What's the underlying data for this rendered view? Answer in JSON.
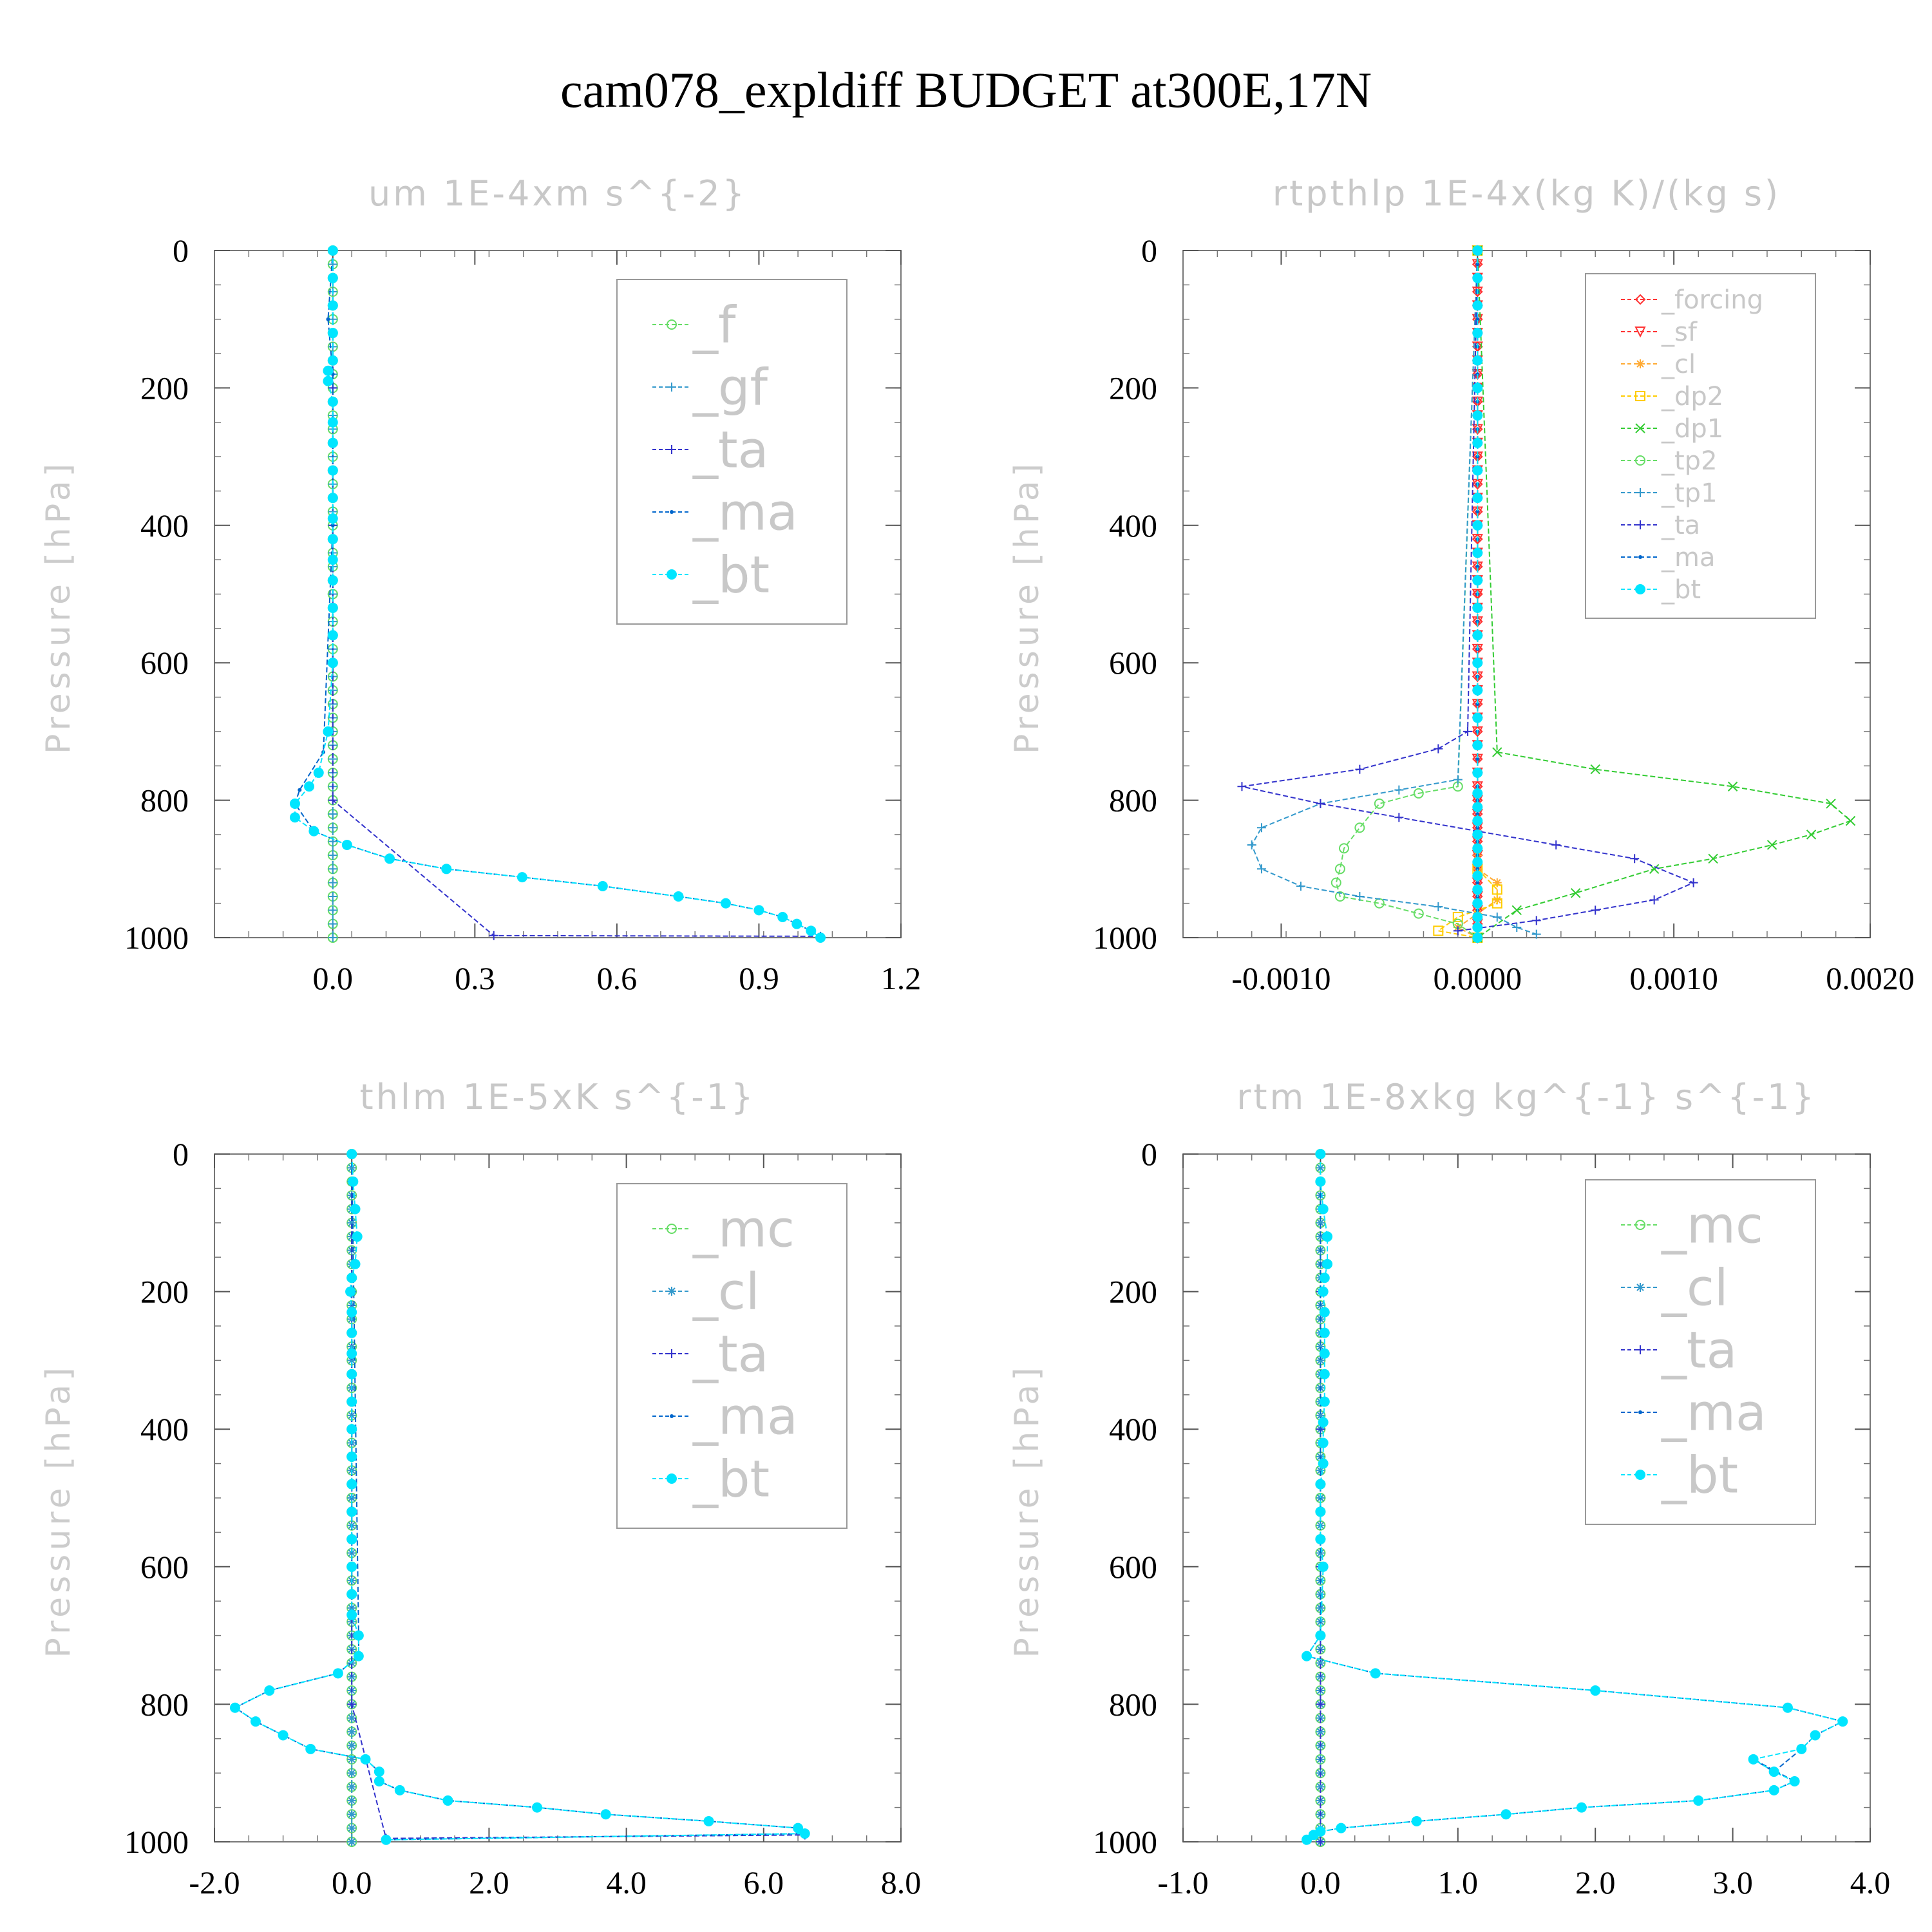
{
  "title": "cam078_expldiff  BUDGET at300E,17N",
  "chart_data": [
    {
      "type": "line",
      "title": "um   1E-4xm s^{-2}",
      "ylabel": "Pressure [hPa]",
      "xlim": [
        -0.25,
        1.2
      ],
      "ylim": [
        1000,
        0
      ],
      "xticks": [
        0.0,
        0.3,
        0.6,
        0.9,
        1.2
      ],
      "xtick_labels": [
        "0.0",
        "0.3",
        "0.6",
        "0.9",
        "1.2"
      ],
      "yticks": [
        0,
        200,
        400,
        600,
        800,
        1000
      ],
      "ytick_labels": [
        "0",
        "200",
        "400",
        "600",
        "800",
        "1000"
      ],
      "legend": [
        "_f",
        "_gf",
        "_ta",
        "_ma",
        "_bt"
      ],
      "colors": [
        "#66dd66",
        "#3399cc",
        "#3333cc",
        "#0066cc",
        "#00e5ff"
      ],
      "series": [
        {
          "name": "_f",
          "x": [
            0,
            0,
            0
          ],
          "y": [
            0,
            500,
            1000
          ]
        },
        {
          "name": "_gf",
          "x": [
            0,
            0,
            0
          ],
          "y": [
            0,
            500,
            1000
          ]
        },
        {
          "name": "_ta",
          "x": [
            0,
            0,
            0,
            0,
            0,
            0.34,
            1.03
          ],
          "y": [
            0,
            200,
            400,
            600,
            800,
            997,
            998
          ]
        },
        {
          "name": "_ma",
          "x": [
            0,
            -0.01,
            0,
            0,
            0,
            -0.02,
            -0.07,
            -0.08,
            -0.04,
            0.03,
            0.12,
            0.24,
            0.4,
            0.57,
            0.73,
            0.83,
            0.9,
            0.95,
            0.98,
            1.01,
            1.03
          ],
          "y": [
            0,
            100,
            180,
            250,
            400,
            730,
            785,
            805,
            845,
            865,
            885,
            900,
            912,
            925,
            940,
            950,
            960,
            970,
            980,
            990,
            1000
          ]
        },
        {
          "name": "_bt",
          "x": [
            0,
            0,
            0,
            0,
            0,
            -0.01,
            -0.01,
            0,
            0,
            0,
            0,
            0,
            0,
            0,
            0,
            0,
            0,
            0,
            0,
            -0.01,
            -0.03,
            -0.05,
            -0.08,
            -0.08,
            -0.04,
            0.03,
            0.12,
            0.24,
            0.4,
            0.57,
            0.73,
            0.83,
            0.9,
            0.95,
            0.98,
            1.01,
            1.03
          ],
          "y": [
            0,
            40,
            80,
            120,
            160,
            175,
            190,
            220,
            250,
            280,
            320,
            360,
            390,
            420,
            450,
            480,
            520,
            560,
            600,
            700,
            760,
            780,
            805,
            825,
            845,
            865,
            885,
            900,
            912,
            925,
            940,
            950,
            960,
            970,
            980,
            990,
            1000
          ]
        }
      ]
    },
    {
      "type": "line",
      "title": "rtpthlp   1E-4x(kg K)/(kg s)",
      "ylabel": "Pressure [hPa]",
      "xlim": [
        -0.0015,
        0.002
      ],
      "ylim": [
        1000,
        0
      ],
      "xticks": [
        -0.001,
        0.0,
        0.001,
        0.002
      ],
      "xtick_labels": [
        "-0.0010",
        "0.0000",
        "0.0010",
        "0.0020"
      ],
      "yticks": [
        0,
        200,
        400,
        600,
        800,
        1000
      ],
      "ytick_labels": [
        "0",
        "200",
        "400",
        "600",
        "800",
        "1000"
      ],
      "legend": [
        "_forcing",
        "_sf",
        "_cl",
        "_dp2",
        "_dp1",
        "_tp2",
        "_tp1",
        "_ta",
        "_ma",
        "_bt"
      ],
      "colors": [
        "#ff3333",
        "#ff3333",
        "#ffaa33",
        "#ffcc00",
        "#33cc33",
        "#66dd66",
        "#3399cc",
        "#3333cc",
        "#0066cc",
        "#00e5ff"
      ],
      "series": [
        {
          "name": "_forcing",
          "x": [
            0,
            0,
            0
          ],
          "y": [
            0,
            500,
            1000
          ]
        },
        {
          "name": "_sf",
          "x": [
            0,
            0,
            0
          ],
          "y": [
            0,
            500,
            1000
          ]
        },
        {
          "name": "_cl",
          "x": [
            0,
            0,
            0,
            0.0001,
            0.0001,
            0,
            -0.0001,
            0
          ],
          "y": [
            0,
            880,
            900,
            920,
            945,
            965,
            985,
            1000
          ]
        },
        {
          "name": "_dp2",
          "x": [
            0,
            0,
            0.0001,
            0.0001,
            -0.0001,
            -0.0002,
            0
          ],
          "y": [
            0,
            900,
            930,
            950,
            970,
            990,
            1000
          ]
        },
        {
          "name": "_dp1",
          "x": [
            0,
            0.0001,
            0.0006,
            0.0013,
            0.0018,
            0.0019,
            0.0017,
            0.0015,
            0.0012,
            0.0009,
            0.0005,
            0.0002,
            0
          ],
          "y": [
            0,
            730,
            755,
            780,
            805,
            830,
            850,
            865,
            885,
            900,
            935,
            960,
            1000
          ]
        },
        {
          "name": "_tp2",
          "x": [
            0,
            -0.0001,
            -0.0003,
            -0.0005,
            -0.0006,
            -0.00068,
            -0.0007,
            -0.00072,
            -0.0007,
            -0.0005,
            -0.0003,
            -0.0001,
            0
          ],
          "y": [
            0,
            780,
            790,
            805,
            840,
            870,
            900,
            920,
            940,
            950,
            965,
            980,
            1000
          ]
        },
        {
          "name": "_tp1",
          "x": [
            0,
            -0.0001,
            -0.0004,
            -0.0008,
            -0.0011,
            -0.00115,
            -0.0011,
            -0.0009,
            -0.0006,
            -0.0002,
            0.0001,
            0.0002,
            0.0003
          ],
          "y": [
            0,
            770,
            785,
            805,
            840,
            865,
            900,
            925,
            940,
            955,
            970,
            985,
            995
          ]
        },
        {
          "name": "_ta",
          "x": [
            0,
            -5e-05,
            -0.0002,
            -0.0006,
            -0.0012,
            -0.0008,
            -0.0004,
            0,
            0.0004,
            0.0008,
            0.0011,
            0.0009,
            0.0006,
            0.0003,
            -0.0001
          ],
          "y": [
            0,
            700,
            725,
            755,
            780,
            805,
            825,
            845,
            865,
            885,
            920,
            945,
            960,
            975,
            990
          ]
        },
        {
          "name": "_ma",
          "x": [
            0,
            0,
            0
          ],
          "y": [
            0,
            500,
            1000
          ]
        },
        {
          "name": "_bt",
          "x": [
            0,
            0,
            0,
            0,
            0,
            0,
            0,
            0,
            0,
            0,
            0,
            0,
            0,
            0,
            0,
            0,
            0,
            0,
            0,
            0,
            0,
            0,
            0,
            0,
            0,
            0,
            0,
            0,
            0,
            0,
            0,
            0
          ],
          "y": [
            0,
            40,
            80,
            120,
            160,
            200,
            240,
            280,
            320,
            360,
            400,
            440,
            480,
            520,
            560,
            600,
            640,
            680,
            720,
            760,
            790,
            810,
            830,
            850,
            870,
            890,
            910,
            930,
            950,
            970,
            985,
            1000
          ]
        }
      ]
    },
    {
      "type": "line",
      "title": "thlm   1E-5xK s^{-1}",
      "ylabel": "Pressure [hPa]",
      "xlim": [
        -2.0,
        8.0
      ],
      "ylim": [
        1000,
        0
      ],
      "xticks": [
        -2.0,
        0.0,
        2.0,
        4.0,
        6.0,
        8.0
      ],
      "xtick_labels": [
        "-2.0",
        "0.0",
        "2.0",
        "4.0",
        "6.0",
        "8.0"
      ],
      "yticks": [
        0,
        200,
        400,
        600,
        800,
        1000
      ],
      "ytick_labels": [
        "0",
        "200",
        "400",
        "600",
        "800",
        "1000"
      ],
      "legend": [
        "_mc",
        "_cl",
        "_ta",
        "_ma",
        "_bt"
      ],
      "colors": [
        "#66dd66",
        "#3399cc",
        "#3333cc",
        "#0066cc",
        "#00e5ff"
      ],
      "series": [
        {
          "name": "_mc",
          "x": [
            0,
            0,
            0
          ],
          "y": [
            0,
            500,
            1000
          ]
        },
        {
          "name": "_cl",
          "x": [
            0,
            0,
            0
          ],
          "y": [
            0,
            500,
            1000
          ]
        },
        {
          "name": "_ta",
          "x": [
            0,
            0,
            0,
            0,
            0,
            0.5,
            6.6
          ],
          "y": [
            0,
            200,
            400,
            600,
            800,
            995,
            990
          ]
        },
        {
          "name": "_ma",
          "x": [
            0,
            0.1,
            0.1,
            -0.2,
            -1.2,
            -1.7,
            -1.4,
            -1.0,
            -0.6,
            0.2,
            0.4,
            0.4,
            0.7,
            1.4,
            2.7,
            3.7,
            5.2,
            6.5,
            6.6,
            0.5
          ],
          "y": [
            0,
            700,
            730,
            755,
            780,
            805,
            825,
            845,
            865,
            880,
            898,
            912,
            925,
            940,
            950,
            960,
            970,
            980,
            988,
            997
          ]
        },
        {
          "name": "_bt",
          "x": [
            0,
            0.02,
            0.05,
            0.08,
            0.05,
            0,
            -0.02,
            0,
            0,
            0,
            0,
            0,
            0,
            0,
            0,
            0,
            0,
            0,
            0,
            0,
            0.1,
            0.1,
            -0.2,
            -1.2,
            -1.7,
            -1.4,
            -1.0,
            -0.6,
            0.2,
            0.4,
            0.4,
            0.7,
            1.4,
            2.7,
            3.7,
            5.2,
            6.5,
            6.6,
            0.5
          ],
          "y": [
            0,
            40,
            80,
            120,
            160,
            180,
            200,
            230,
            260,
            290,
            320,
            360,
            400,
            440,
            480,
            520,
            560,
            600,
            640,
            670,
            700,
            730,
            755,
            780,
            805,
            825,
            845,
            865,
            880,
            898,
            912,
            925,
            940,
            950,
            960,
            970,
            980,
            988,
            997
          ]
        }
      ]
    },
    {
      "type": "line",
      "title": "rtm   1E-8xkg kg^{-1} s^{-1}",
      "ylabel": "Pressure [hPa]",
      "xlim": [
        -1.0,
        4.0
      ],
      "ylim": [
        1000,
        0
      ],
      "xticks": [
        -1.0,
        0.0,
        1.0,
        2.0,
        3.0,
        4.0
      ],
      "xtick_labels": [
        "-1.0",
        "0.0",
        "1.0",
        "2.0",
        "3.0",
        "4.0"
      ],
      "yticks": [
        0,
        200,
        400,
        600,
        800,
        1000
      ],
      "ytick_labels": [
        "0",
        "200",
        "400",
        "600",
        "800",
        "1000"
      ],
      "legend": [
        "_mc",
        "_cl",
        "_ta",
        "_ma",
        "_bt"
      ],
      "colors": [
        "#66dd66",
        "#3399cc",
        "#3333cc",
        "#0066cc",
        "#00e5ff"
      ],
      "series": [
        {
          "name": "_mc",
          "x": [
            0,
            0,
            0
          ],
          "y": [
            0,
            500,
            1000
          ]
        },
        {
          "name": "_cl",
          "x": [
            0,
            0,
            0
          ],
          "y": [
            0,
            500,
            1000
          ]
        },
        {
          "name": "_ta",
          "x": [
            0,
            0,
            0,
            0,
            0,
            0
          ],
          "y": [
            0,
            200,
            400,
            600,
            800,
            1000
          ]
        },
        {
          "name": "_ma",
          "x": [
            0,
            0,
            -0.1,
            0.4,
            2.0,
            3.4,
            3.8,
            3.6,
            3.5,
            3.3,
            3.15,
            3.45,
            3.3,
            2.75,
            1.9,
            1.35,
            0.7,
            0.15,
            0,
            -0.05,
            -0.1
          ],
          "y": [
            0,
            700,
            730,
            755,
            780,
            805,
            825,
            845,
            865,
            898,
            880,
            912,
            925,
            940,
            950,
            960,
            970,
            980,
            985,
            990,
            997
          ]
        },
        {
          "name": "_bt",
          "x": [
            0,
            0,
            0.02,
            0.05,
            0.05,
            0.03,
            0.02,
            0.03,
            0.03,
            0.03,
            0.03,
            0.03,
            0.02,
            0.02,
            0.02,
            0,
            0,
            0,
            0.02,
            0,
            -0.1,
            0.4,
            2.0,
            3.4,
            3.8,
            3.6,
            3.5,
            3.15,
            3.3,
            3.45,
            3.3,
            2.75,
            1.9,
            1.35,
            0.7,
            0.15,
            0,
            -0.05,
            -0.1
          ],
          "y": [
            0,
            40,
            80,
            120,
            160,
            180,
            200,
            230,
            260,
            290,
            320,
            360,
            390,
            420,
            450,
            480,
            520,
            560,
            600,
            700,
            730,
            755,
            780,
            805,
            825,
            845,
            865,
            880,
            898,
            912,
            925,
            940,
            950,
            960,
            970,
            980,
            985,
            990,
            997
          ]
        }
      ]
    }
  ]
}
